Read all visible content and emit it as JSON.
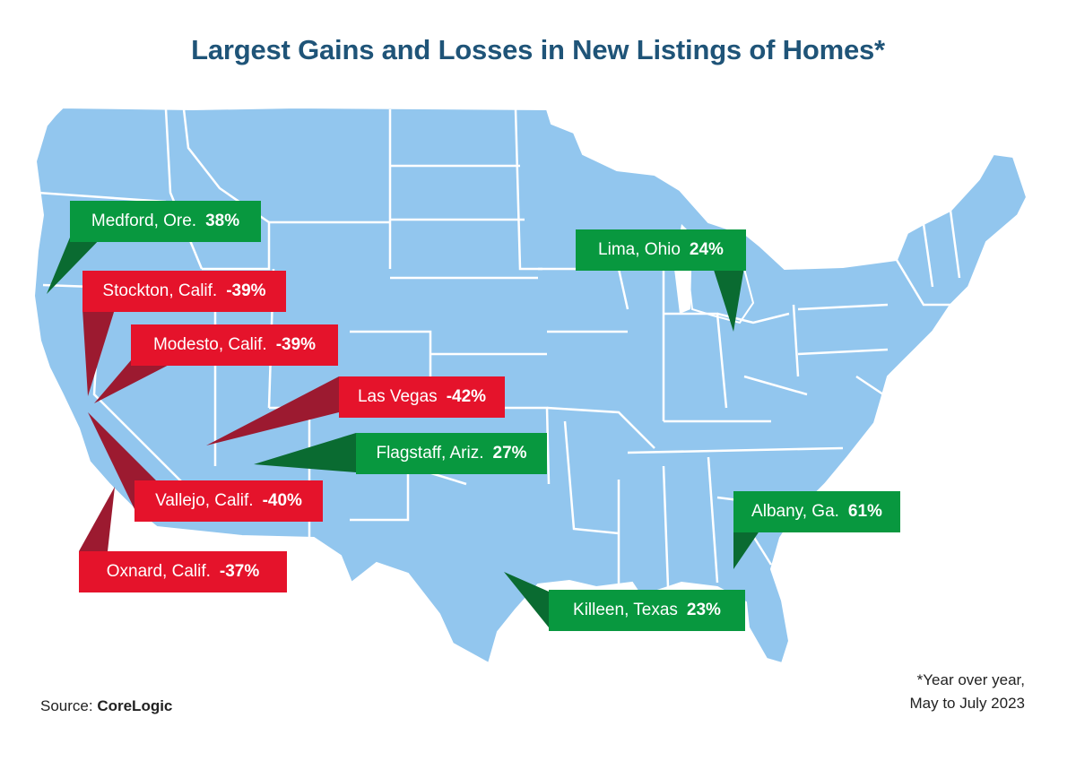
{
  "title": "Largest Gains and Losses in New Listings of Homes*",
  "source_prefix": "Source:",
  "source_name": "CoreLogic",
  "footnote_line1": "*Year over year,",
  "footnote_line2": "May to July 2023",
  "colors": {
    "gain": "#08983f",
    "loss": "#e5132b",
    "land": "#92c6ee",
    "borders": "#ffffff",
    "title": "#1f5478"
  },
  "markets": [
    {
      "city": "Medford, Ore.",
      "change": "38%",
      "type": "gain"
    },
    {
      "city": "Stockton, Calif.",
      "change": "-39%",
      "type": "loss"
    },
    {
      "city": "Modesto, Calif.",
      "change": "-39%",
      "type": "loss"
    },
    {
      "city": "Las Vegas",
      "change": "-42%",
      "type": "loss"
    },
    {
      "city": "Flagstaff, Ariz.",
      "change": "27%",
      "type": "gain"
    },
    {
      "city": "Vallejo, Calif.",
      "change": "-40%",
      "type": "loss"
    },
    {
      "city": "Oxnard, Calif.",
      "change": "-37%",
      "type": "loss"
    },
    {
      "city": "Lima, Ohio",
      "change": "24%",
      "type": "gain"
    },
    {
      "city": "Albany, Ga.",
      "change": "61%",
      "type": "gain"
    },
    {
      "city": "Killeen, Texas",
      "change": "23%",
      "type": "gain"
    }
  ]
}
